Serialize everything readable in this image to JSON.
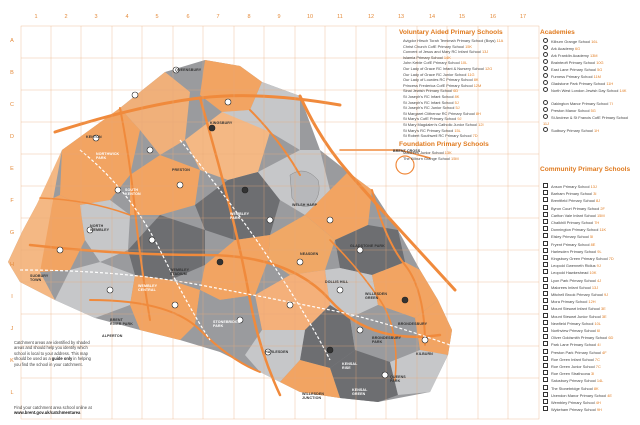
{
  "columns": [
    "1",
    "2",
    "3",
    "4",
    "5",
    "6",
    "7",
    "8",
    "9",
    "10",
    "11",
    "12",
    "13",
    "14",
    "15",
    "16",
    "17"
  ],
  "rows": [
    "A",
    "B",
    "C",
    "D",
    "E",
    "F",
    "G",
    "H",
    "I",
    "J",
    "K",
    "L"
  ],
  "places": [
    {
      "id": "queensbury",
      "name": "QUEENSBURY"
    },
    {
      "id": "kenton",
      "name": "KENTON"
    },
    {
      "id": "northwick-park",
      "name": "NORTHWICK\nPARK"
    },
    {
      "id": "preston",
      "name": "PRESTON"
    },
    {
      "id": "south-kenton",
      "name": "SOUTH\nKENTON"
    },
    {
      "id": "kingsbury",
      "name": "KINGSBURY"
    },
    {
      "id": "welsh-harp",
      "name": "WELSH HARP"
    },
    {
      "id": "brent-cross",
      "name": "BRENT CROSS"
    },
    {
      "id": "north-wembley",
      "name": "NORTH\nWEMBLEY"
    },
    {
      "id": "wembley-park",
      "name": "WEMBLEY\nPARK"
    },
    {
      "id": "neasden",
      "name": "NEASDEN"
    },
    {
      "id": "gladstone-park",
      "name": "GLADSTONE PARK"
    },
    {
      "id": "sudbury-town",
      "name": "SUDBURY\nTOWN"
    },
    {
      "id": "wembley-stadium",
      "name": "WEMBLEY\nSTADIUM"
    },
    {
      "id": "wembley-central",
      "name": "WEMBLEY\nCENTRAL"
    },
    {
      "id": "dollis-hill",
      "name": "DOLLIS HILL"
    },
    {
      "id": "willesden-green",
      "name": "WILLESDEN\nGREEN"
    },
    {
      "id": "alperton",
      "name": "ALPERTON"
    },
    {
      "id": "stonebridge-park",
      "name": "STONEBRIDGE\nPARK"
    },
    {
      "id": "harlesden",
      "name": "HARLESDEN"
    },
    {
      "id": "brondesbury",
      "name": "BRONDESBURY"
    },
    {
      "id": "brondesbury-park",
      "name": "BRONDESBURY\nPARK"
    },
    {
      "id": "kilburn",
      "name": "KILBURN"
    },
    {
      "id": "kensal-rise",
      "name": "KENSAL\nRISE"
    },
    {
      "id": "kensal-green",
      "name": "KENSAL\nGREEN"
    },
    {
      "id": "queens-park",
      "name": "QUEENS\nPARK"
    },
    {
      "id": "willesden-junction",
      "name": "WILLESDEN\nJUNCTION"
    },
    {
      "id": "brent-river-park",
      "name": "BRENT\nRIVER PARK"
    }
  ],
  "legend": {
    "voluntary_aided": {
      "title": "Voluntary Aided Primary Schools",
      "items": [
        {
          "name": "Avigdor Hirsch Torah Temimah Primary School (Boys)",
          "code": "11A"
        },
        {
          "name": "Christ Church CofE Primary School",
          "code": "15K"
        },
        {
          "name": "Convent of Jesus and Mary RC Infant School",
          "code": "13J"
        },
        {
          "name": "Islamia Primary School",
          "code": "14K"
        },
        {
          "name": "John Keble CofE Primary School",
          "code": "10L"
        },
        {
          "name": "Our Lady of Grace RC Infant & Nursery School",
          "code": "12G"
        },
        {
          "name": "Our Lady of Grace RC Junior School",
          "code": "11G"
        },
        {
          "name": "Our Lady of Lourdes RC Primary School",
          "code": "8K"
        },
        {
          "name": "Princess Frederica CofE Primary School",
          "code": "12M"
        },
        {
          "name": "Sinai Jewish Primary School",
          "code": "6D"
        },
        {
          "name": "St Joseph's RC Infant School",
          "code": "8K"
        },
        {
          "name": "St Joseph's RC Infant School",
          "code": "5J"
        },
        {
          "name": "St Joseph's RC Junior School",
          "code": "5J"
        },
        {
          "name": "St Margaret Clitherow RC Primary School",
          "code": "8H"
        },
        {
          "name": "St Mary's CofE Primary School",
          "code": "9J"
        },
        {
          "name": "St Mary Magdalen's Catholic Junior School",
          "code": "12I"
        },
        {
          "name": "St Mary's RC Primary School",
          "code": "15L"
        },
        {
          "name": "St Robert Southwell RC Primary School",
          "code": "7D"
        }
      ]
    },
    "foundation": {
      "title": "Foundation Primary Schools",
      "items": [
        {
          "name": "Malorees Junior School",
          "code": "13K"
        },
        {
          "name": "The Kilburn Grange School",
          "code": "15M"
        }
      ]
    },
    "academies": {
      "title": "Academies",
      "items": [
        {
          "name": "Kilburn Grange School",
          "code": "16L"
        },
        {
          "name": "Ark Academy",
          "code": "6G"
        },
        {
          "name": "Ark Franklin Academy",
          "code": "13M"
        },
        {
          "name": "Brainteoft Primary School",
          "code": "10G"
        },
        {
          "name": "East Lane Primary School",
          "code": "5G"
        },
        {
          "name": "Furness Primary School",
          "code": "11M"
        },
        {
          "name": "Gladstone Park Primary School",
          "code": "11H"
        },
        {
          "name": "North West London Jewish Day School",
          "code": "14K"
        },
        {
          "name": "Oakington Manor Primary School",
          "code": "7I"
        },
        {
          "name": "Preston Manor School",
          "code": "5G"
        },
        {
          "name": "St Andrew & St Francis CofE Primary School",
          "code": "11J"
        },
        {
          "name": "Sudbury Primary School",
          "code": "1H"
        }
      ]
    },
    "community": {
      "title": "Community Primary Schools",
      "items": [
        {
          "name": "Anson Primary School",
          "code": "13J"
        },
        {
          "name": "Barham Primary School",
          "code": "3I"
        },
        {
          "name": "Brentfield Primary School",
          "code": "8J"
        },
        {
          "name": "Byron Court Primary School",
          "code": "2F"
        },
        {
          "name": "Carlton Vale Infant School",
          "code": "15M"
        },
        {
          "name": "Chalkhill Primary School",
          "code": "7H"
        },
        {
          "name": "Donnington Primary School",
          "code": "11K"
        },
        {
          "name": "Elsley Primary School",
          "code": "5I"
        },
        {
          "name": "Fryent Primary School",
          "code": "8E"
        },
        {
          "name": "Harlesden Primary School",
          "code": "9L"
        },
        {
          "name": "Kingsbury Green Primary School",
          "code": "7D"
        },
        {
          "name": "Leopold Gwenneth Ridius",
          "code": "9J"
        },
        {
          "name": "Leopold Hawkeshead",
          "code": "10K"
        },
        {
          "name": "Lyon Park Primary School",
          "code": "4J"
        },
        {
          "name": "Malorees Infant School",
          "code": "13J"
        },
        {
          "name": "Mitchell Brook Primary School",
          "code": "9J"
        },
        {
          "name": "Mora Primary School",
          "code": "12H"
        },
        {
          "name": "Mount Stewart Infant School",
          "code": "3E"
        },
        {
          "name": "Mount Stewart Junior School",
          "code": "3E"
        },
        {
          "name": "Newfield Primary School",
          "code": "10L"
        },
        {
          "name": "Northview Primary School",
          "code": "6I"
        },
        {
          "name": "Oliver Goldsmith Primary School",
          "code": "6D"
        },
        {
          "name": "Park Lane Primary School",
          "code": "4I"
        },
        {
          "name": "Preston Park Primary School",
          "code": "4F"
        },
        {
          "name": "Roe Green Infant School",
          "code": "7C"
        },
        {
          "name": "Roe Green Junior School",
          "code": "7C"
        },
        {
          "name": "Roe Green Strathcona",
          "code": "3I"
        },
        {
          "name": "Salusbury Primary School",
          "code": "14L"
        },
        {
          "name": "The Stonebridge School",
          "code": "8K"
        },
        {
          "name": "Uxendon Manor Primary School",
          "code": "4E"
        },
        {
          "name": "Wembley Primary School",
          "code": "4H"
        },
        {
          "name": "Wykeham Primary School",
          "code": "9H"
        }
      ]
    }
  },
  "note": {
    "part1": "Catchment areas are identified by shaded areas and should help you identify which school is local to your address. This map should be used as a ",
    "bold": "guide only",
    "part2": " in helping you find the school in your catchment."
  },
  "footer": {
    "line1": "Find your catchment area school online at",
    "url": "www.brent.gov.uk/catchmentarea"
  },
  "colors": {
    "grid": "#e8a978",
    "orange_fill": "#f2a462",
    "dark_grey": "#6d6e71",
    "mid_grey": "#9a9b9e",
    "light_grey": "#c6c7c9",
    "road": "#f08a3c",
    "accent_text": "#e07b20"
  }
}
